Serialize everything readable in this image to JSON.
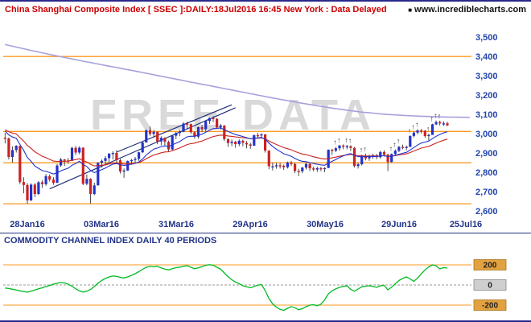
{
  "header": {
    "title": "China Shanghai Composite Index [ SSEC ]:DAILY:18Jul2016 16:45 New York : Data Delayed",
    "site": "www.incrediblecharts.com"
  },
  "watermark": "FREE DATA",
  "chart_data": {
    "type": "candlestick",
    "title": "China Shanghai Composite Index [ SSEC ] DAILY 18Jul2016",
    "axis_slots": 126,
    "price_range": [
      2580,
      3580
    ],
    "y_ticks": [
      3500,
      3400,
      3300,
      3200,
      3100,
      3000,
      2900,
      2800,
      2700,
      2600
    ],
    "y_tick_labels": [
      "3,500",
      "3,400",
      "3,300",
      "3,200",
      "3,100",
      "3,000",
      "2,900",
      "2,800",
      "2,700",
      "2,600"
    ],
    "x_ticks": [
      {
        "index": 6,
        "label": "28Jan16"
      },
      {
        "index": 26,
        "label": "03Mar16"
      },
      {
        "index": 46,
        "label": "31Mar16"
      },
      {
        "index": 66,
        "label": "29Apr16"
      },
      {
        "index": 86,
        "label": "30May16"
      },
      {
        "index": 106,
        "label": "29Jun16"
      },
      {
        "index": 124,
        "label": "25Jul16"
      }
    ],
    "support_resistance": [
      3400,
      3012,
      2850,
      2638
    ],
    "long_ma_samples": [
      3462,
      3430,
      3400,
      3372,
      3345,
      3318,
      3290,
      3262,
      3235,
      3207,
      3180,
      3155,
      3132,
      3113,
      3100,
      3092,
      3087,
      3085
    ],
    "ema_periods": {
      "fast": 13,
      "slow": 26
    },
    "ema_seeds": {
      "fast": 3020,
      "slow": 3025
    },
    "trendlines": [
      [
        12,
        2715,
        62,
        3135
      ],
      [
        30,
        2905,
        61,
        3150
      ]
    ],
    "signal_arrow_indices": [
      89,
      90,
      92,
      93,
      96,
      97,
      104,
      105,
      106,
      109,
      110,
      111,
      114,
      115,
      116,
      117
    ],
    "candles": [
      [
        2980,
        3005,
        2950,
        2976
      ],
      [
        2976,
        2981,
        2867,
        2880
      ],
      [
        2880,
        2934,
        2852,
        2916
      ],
      [
        2916,
        2941,
        2903,
        2938
      ],
      [
        2938,
        2938,
        2740,
        2750
      ],
      [
        2750,
        2775,
        2692,
        2735
      ],
      [
        2735,
        2745,
        2638,
        2655
      ],
      [
        2655,
        2744,
        2652,
        2737
      ],
      [
        2737,
        2745,
        2672,
        2688
      ],
      [
        2688,
        2755,
        2683,
        2749
      ],
      [
        2749,
        2760,
        2720,
        2739
      ],
      [
        2739,
        2792,
        2731,
        2781
      ],
      [
        2781,
        2790,
        2753,
        2763
      ],
      [
        2763,
        2775,
        2736,
        2746
      ],
      [
        2746,
        2844,
        2746,
        2836
      ],
      [
        2836,
        2875,
        2829,
        2867
      ],
      [
        2867,
        2870,
        2833,
        2862
      ],
      [
        2862,
        2875,
        2844,
        2860
      ],
      [
        2860,
        2933,
        2860,
        2927
      ],
      [
        2927,
        2937,
        2891,
        2903
      ],
      [
        2903,
        2935,
        2894,
        2928
      ],
      [
        2928,
        2930,
        2734,
        2741
      ],
      [
        2741,
        2789,
        2733,
        2767
      ],
      [
        2767,
        2770,
        2639,
        2688
      ],
      [
        2688,
        2747,
        2682,
        2733
      ],
      [
        2733,
        2853,
        2733,
        2850
      ],
      [
        2850,
        2867,
        2826,
        2860
      ],
      [
        2860,
        2884,
        2835,
        2874
      ],
      [
        2874,
        2900,
        2855,
        2897
      ],
      [
        2897,
        2910,
        2867,
        2901
      ],
      [
        2901,
        2915,
        2850,
        2863
      ],
      [
        2863,
        2870,
        2794,
        2805
      ],
      [
        2805,
        2821,
        2772,
        2810
      ],
      [
        2810,
        2862,
        2808,
        2859
      ],
      [
        2859,
        2870,
        2840,
        2864
      ],
      [
        2864,
        2880,
        2851,
        2870
      ],
      [
        2870,
        2907,
        2860,
        2904
      ],
      [
        2904,
        2958,
        2900,
        2955
      ],
      [
        2955,
        3022,
        2955,
        3019
      ],
      [
        3019,
        3037,
        2989,
        2999
      ],
      [
        2999,
        3020,
        2981,
        3010
      ],
      [
        3010,
        3012,
        2946,
        2960
      ],
      [
        2960,
        2987,
        2940,
        2979
      ],
      [
        2979,
        2982,
        2937,
        2958
      ],
      [
        2958,
        2965,
        2905,
        2919
      ],
      [
        2919,
        2993,
        2913,
        2990
      ],
      [
        2990,
        3009,
        2972,
        3004
      ],
      [
        3004,
        3019,
        2988,
        3010
      ],
      [
        3010,
        3061,
        3008,
        3053
      ],
      [
        3053,
        3062,
        3027,
        3050
      ],
      [
        3050,
        3053,
        2999,
        3008
      ],
      [
        3008,
        3012,
        2975,
        2985
      ],
      [
        2985,
        3037,
        2975,
        3034
      ],
      [
        3034,
        3045,
        3009,
        3023
      ],
      [
        3023,
        3068,
        3012,
        3066
      ],
      [
        3066,
        3086,
        3051,
        3082
      ],
      [
        3082,
        3091,
        3061,
        3078
      ],
      [
        3078,
        3080,
        3026,
        3033
      ],
      [
        3033,
        3051,
        3021,
        3043
      ],
      [
        3043,
        3045,
        2963,
        2972
      ],
      [
        2972,
        2977,
        2932,
        2952
      ],
      [
        2952,
        2971,
        2936,
        2959
      ],
      [
        2959,
        2963,
        2928,
        2946
      ],
      [
        2946,
        2971,
        2936,
        2964
      ],
      [
        2964,
        2970,
        2936,
        2953
      ],
      [
        2953,
        2962,
        2925,
        2945
      ],
      [
        2945,
        2954,
        2922,
        2938
      ],
      [
        2938,
        2996,
        2938,
        2993
      ],
      [
        2993,
        3005,
        2976,
        2991
      ],
      [
        2991,
        3003,
        2980,
        2997
      ],
      [
        2997,
        2998,
        2903,
        2913
      ],
      [
        2913,
        2915,
        2817,
        2832
      ],
      [
        2832,
        2851,
        2810,
        2832
      ],
      [
        2832,
        2849,
        2819,
        2837
      ],
      [
        2837,
        2849,
        2820,
        2835
      ],
      [
        2835,
        2841,
        2813,
        2827
      ],
      [
        2827,
        2856,
        2820,
        2851
      ],
      [
        2851,
        2860,
        2833,
        2844
      ],
      [
        2844,
        2850,
        2797,
        2807
      ],
      [
        2807,
        2819,
        2781,
        2806
      ],
      [
        2806,
        2829,
        2796,
        2825
      ],
      [
        2825,
        2849,
        2815,
        2844
      ],
      [
        2844,
        2847,
        2807,
        2821
      ],
      [
        2821,
        2830,
        2806,
        2815
      ],
      [
        2815,
        2829,
        2802,
        2822
      ],
      [
        2822,
        2829,
        2807,
        2821
      ],
      [
        2821,
        2827,
        2802,
        2823
      ],
      [
        2823,
        2919,
        2823,
        2917
      ],
      [
        2917,
        2923,
        2891,
        2913
      ],
      [
        2913,
        2932,
        2905,
        2925
      ],
      [
        2925,
        2943,
        2913,
        2939
      ],
      [
        2939,
        2945,
        2920,
        2934
      ],
      [
        2934,
        2942,
        2920,
        2936
      ],
      [
        2936,
        2941,
        2911,
        2927
      ],
      [
        2927,
        2932,
        2826,
        2833
      ],
      [
        2833,
        2851,
        2820,
        2842
      ],
      [
        2842,
        2892,
        2836,
        2887
      ],
      [
        2887,
        2897,
        2863,
        2873
      ],
      [
        2873,
        2893,
        2860,
        2885
      ],
      [
        2885,
        2897,
        2871,
        2889
      ],
      [
        2889,
        2896,
        2868,
        2879
      ],
      [
        2879,
        2912,
        2871,
        2906
      ],
      [
        2906,
        2914,
        2882,
        2892
      ],
      [
        2892,
        2897,
        2807,
        2854
      ],
      [
        2854,
        2898,
        2851,
        2895
      ],
      [
        2895,
        2919,
        2888,
        2912
      ],
      [
        2912,
        2938,
        2905,
        2932
      ],
      [
        2932,
        2944,
        2920,
        2930
      ],
      [
        2930,
        2939,
        2915,
        2932
      ],
      [
        2932,
        2991,
        2932,
        2989
      ],
      [
        2989,
        3012,
        2981,
        3006
      ],
      [
        3006,
        3024,
        2997,
        3017
      ],
      [
        3017,
        3025,
        3003,
        3016
      ],
      [
        3016,
        3019,
        2979,
        2988
      ],
      [
        2988,
        3000,
        2966,
        2994
      ],
      [
        2994,
        3052,
        2994,
        3049
      ],
      [
        3049,
        3069,
        3044,
        3061
      ],
      [
        3061,
        3068,
        3043,
        3054
      ],
      [
        3054,
        3064,
        3041,
        3054
      ],
      [
        3054,
        3062,
        3039,
        3043
      ]
    ],
    "colors": {
      "up": "#2233cc",
      "down": "#cc2222",
      "wick": "#222222",
      "ma_fast": "#2233cc",
      "ma_slow": "#cc2222",
      "long_ma": "#a6a0dc",
      "levels": "#ff9922",
      "trendline": "#223377",
      "watermark": "#d9d9d9",
      "axis_label": "#2244aa"
    }
  },
  "indicator": {
    "label": "COMMODITY CHANNEL INDEX DAILY 40 PERIODS",
    "period": 40,
    "levels": [
      200,
      0,
      -200
    ],
    "range": [
      -320,
      320
    ],
    "color": "#00bb22",
    "cci_values": [
      -30,
      -35,
      -42,
      -50,
      -58,
      -65,
      -72,
      -62,
      -50,
      -38,
      -28,
      -15,
      -5,
      8,
      18,
      24,
      20,
      8,
      -12,
      -38,
      -58,
      -70,
      -62,
      -45,
      -15,
      18,
      45,
      65,
      80,
      90,
      85,
      76,
      70,
      80,
      95,
      112,
      132,
      155,
      175,
      185,
      180,
      186,
      170,
      158,
      150,
      162,
      172,
      176,
      186,
      192,
      176,
      162,
      170,
      182,
      196,
      202,
      196,
      176,
      158,
      120,
      82,
      52,
      30,
      12,
      -8,
      -18,
      -28,
      -15,
      -2,
      5,
      -55,
      -135,
      -188,
      -220,
      -242,
      -252,
      -232,
      -215,
      -226,
      -246,
      -236,
      -216,
      -200,
      -196,
      -206,
      -190,
      -148,
      -88,
      -58,
      -38,
      -24,
      -14,
      -8,
      -44,
      -62,
      -40,
      -18,
      -12,
      -8,
      -14,
      -24,
      -8,
      -4,
      -48,
      -22,
      12,
      45,
      65,
      80,
      60,
      35,
      70,
      110,
      150,
      180,
      200,
      190,
      160,
      172,
      168
    ]
  }
}
